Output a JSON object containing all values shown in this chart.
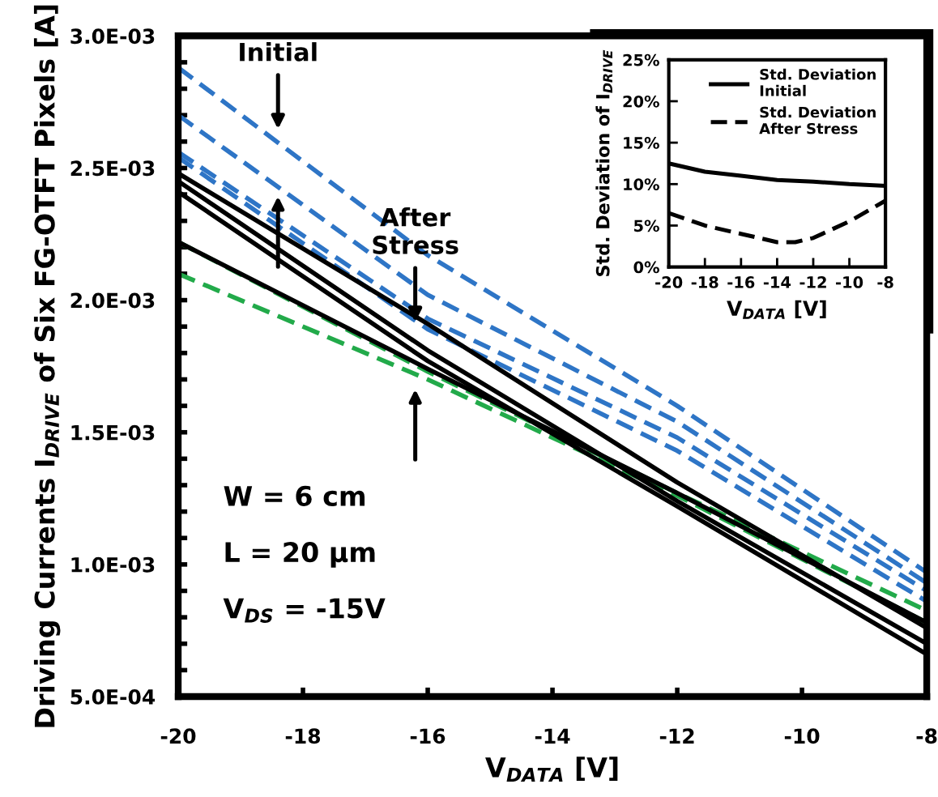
{
  "chart_data": [
    {
      "type": "line",
      "xlabel": "V$_{DATA}$ [V]",
      "ylabel": "Driving Currents I$_{DRIVE}$ of Six FG-OTFT Pixels [A]",
      "x": [
        -20,
        -16,
        -12,
        -8
      ],
      "xlim": [
        -20,
        -8
      ],
      "xticks": [
        -20,
        -18,
        -16,
        -14,
        -12,
        -10,
        -8
      ],
      "ylim": [
        0.0005,
        0.003
      ],
      "yticks": [
        {
          "value": 0.0005,
          "label": "5.0E-04"
        },
        {
          "value": 0.0006,
          "label": null
        },
        {
          "value": 0.0007,
          "label": null
        },
        {
          "value": 0.0008,
          "label": null
        },
        {
          "value": 0.0009,
          "label": null
        },
        {
          "value": 0.001,
          "label": "1.0E-03"
        },
        {
          "value": 0.0011,
          "label": null
        },
        {
          "value": 0.0012,
          "label": null
        },
        {
          "value": 0.0013,
          "label": null
        },
        {
          "value": 0.0014,
          "label": null
        },
        {
          "value": 0.0015,
          "label": "1.5E-03"
        },
        {
          "value": 0.0016,
          "label": null
        },
        {
          "value": 0.0017,
          "label": null
        },
        {
          "value": 0.0018,
          "label": null
        },
        {
          "value": 0.0019,
          "label": null
        },
        {
          "value": 0.002,
          "label": "2.0E-03"
        },
        {
          "value": 0.0021,
          "label": null
        },
        {
          "value": 0.0022,
          "label": null
        },
        {
          "value": 0.0023,
          "label": null
        },
        {
          "value": 0.0024,
          "label": null
        },
        {
          "value": 0.0025,
          "label": "2.5E-03"
        },
        {
          "value": 0.0026,
          "label": null
        },
        {
          "value": 0.0027,
          "label": null
        },
        {
          "value": 0.0028,
          "label": null
        },
        {
          "value": 0.0029,
          "label": null
        },
        {
          "value": 0.003,
          "label": "3.0E-03"
        }
      ],
      "grid": false,
      "legend": false,
      "series": [
        {
          "color": "#2e75c6",
          "line_style": "dashed",
          "values": [
            0.00288,
            0.00217,
            0.0016,
            0.00097
          ]
        },
        {
          "color": "#2e75c6",
          "line_style": "dashed",
          "values": [
            0.0027,
            0.00202,
            0.00154,
            0.00093
          ]
        },
        {
          "color": "#2e75c6",
          "line_style": "dashed",
          "values": [
            0.00256,
            0.00193,
            0.00148,
            0.0009
          ]
        },
        {
          "color": "#2e75c6",
          "line_style": "dashed",
          "values": [
            0.00254,
            0.00189,
            0.00143,
            0.00086
          ]
        },
        {
          "color": "#22aa4a",
          "line_style": "dashed",
          "values": [
            0.00222,
            0.00173,
            0.00127,
            0.000825
          ]
        },
        {
          "color": "#22aa4a",
          "line_style": "dashed",
          "values": [
            0.0021,
            0.0017,
            0.00126,
            0.00078
          ]
        },
        {
          "color": "#000000",
          "line_style": "solid",
          "values": [
            0.00248,
            0.00191,
            0.00131,
            0.00076
          ]
        },
        {
          "color": "#000000",
          "line_style": "solid",
          "values": [
            0.00245,
            0.00181,
            0.00124,
            0.0007
          ]
        },
        {
          "color": "#000000",
          "line_style": "solid",
          "values": [
            0.00241,
            0.00177,
            0.00122,
            0.00066
          ]
        },
        {
          "color": "#000000",
          "line_style": "solid",
          "values": [
            0.00222,
            0.00174,
            0.00127,
            0.00078
          ]
        }
      ],
      "annotations": [
        {
          "text": "Initial",
          "x": -18.4,
          "y": 0.00263
        },
        {
          "text": "After\nStress",
          "x": -16.2,
          "y": 0.0019
        },
        "W = 6 cm",
        "L = 20 µm",
        "V$_{DS}$ = -15V"
      ]
    },
    {
      "type": "line",
      "xlabel": "V$_{DATA}$ [V]",
      "ylabel": "Std. Deviation of I$_{DRIVE}$",
      "x": [
        -20,
        -18,
        -16,
        -14,
        -13,
        -12,
        -10,
        -8
      ],
      "xlim": [
        -20,
        -8
      ],
      "xticks": [
        -20,
        -18,
        -16,
        -14,
        -12,
        -10,
        -8
      ],
      "ylim": [
        0,
        25
      ],
      "yticks": [
        {
          "value": 0,
          "label": "0%"
        },
        {
          "value": 5,
          "label": "5%"
        },
        {
          "value": 10,
          "label": "10%"
        },
        {
          "value": 15,
          "label": "15%"
        },
        {
          "value": 20,
          "label": "20%"
        },
        {
          "value": 25,
          "label": "25%"
        }
      ],
      "grid": false,
      "legend": "top right",
      "series": [
        {
          "name": "Std. Deviation\nInitial",
          "color": "#000000",
          "line_style": "solid",
          "values": [
            12.5,
            11.5,
            11,
            10.5,
            10.4,
            10.3,
            10,
            9.8
          ]
        },
        {
          "name": "Std. Deviation\nAfter Stress",
          "color": "#000000",
          "line_style": "dashed",
          "values": [
            6.5,
            5,
            4,
            3,
            3,
            3.5,
            5.5,
            8
          ]
        }
      ]
    }
  ]
}
